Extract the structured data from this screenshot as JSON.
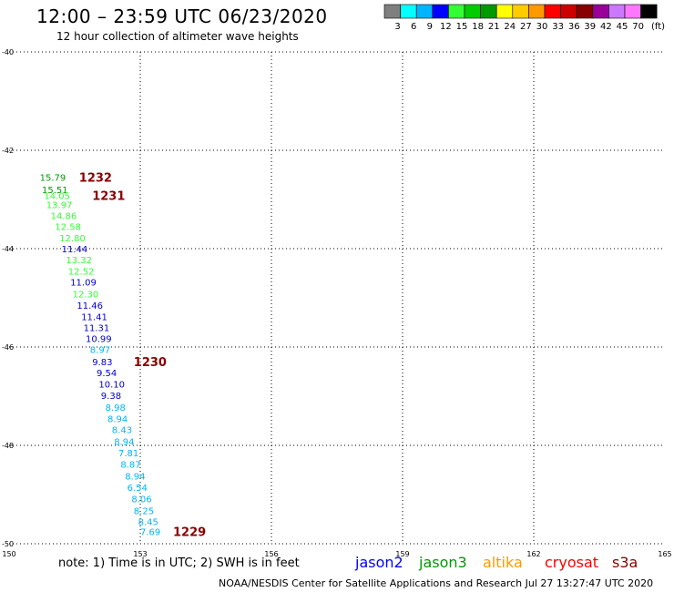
{
  "header": {
    "title": "12:00 – 23:59 UTC 06/23/2020",
    "subtitle": "12 hour collection of altimeter wave heights"
  },
  "legend": {
    "bins": [
      {
        "label": "3",
        "color": "#7f7f7f"
      },
      {
        "label": "6",
        "color": "#00ffff"
      },
      {
        "label": "9",
        "color": "#00b4ff"
      },
      {
        "label": "12",
        "color": "#0000ff"
      },
      {
        "label": "15",
        "color": "#33ff33"
      },
      {
        "label": "18",
        "color": "#00cc00"
      },
      {
        "label": "21",
        "color": "#009900"
      },
      {
        "label": "24",
        "color": "#ffff00"
      },
      {
        "label": "27",
        "color": "#ffcc00"
      },
      {
        "label": "30",
        "color": "#ff9900"
      },
      {
        "label": "33",
        "color": "#ff0000"
      },
      {
        "label": "36",
        "color": "#cc0000"
      },
      {
        "label": "39",
        "color": "#880000"
      },
      {
        "label": "42",
        "color": "#990099"
      },
      {
        "label": "45",
        "color": "#cc77ff"
      },
      {
        "label": "70",
        "color": "#ff77ff"
      },
      {
        "label": "",
        "color": "#000000"
      }
    ],
    "unit": "(ft)"
  },
  "chart_data": {
    "type": "scatter",
    "xlim": [
      150,
      165
    ],
    "ylim": [
      -50,
      -40
    ],
    "x_ticks": [
      "150",
      "153",
      "156",
      "159",
      "162",
      "165"
    ],
    "y_ticks": [
      "-40",
      "-42",
      "-44",
      "-46",
      "-48",
      "-50"
    ],
    "grid": true,
    "points": [
      {
        "lon": 150.7,
        "lat": -42.55,
        "swh": "15.79",
        "color": "#009900"
      },
      {
        "lon": 150.75,
        "lat": -42.8,
        "swh": "15.51",
        "color": "#009900"
      },
      {
        "lon": 150.8,
        "lat": -42.92,
        "swh": "14.05",
        "color": "#33ff33"
      },
      {
        "lon": 150.85,
        "lat": -43.1,
        "swh": "13.97",
        "color": "#33ff33"
      },
      {
        "lon": 150.95,
        "lat": -43.32,
        "swh": "14.86",
        "color": "#33ff33"
      },
      {
        "lon": 151.05,
        "lat": -43.55,
        "swh": "12.58",
        "color": "#33ff33"
      },
      {
        "lon": 151.15,
        "lat": -43.78,
        "swh": "12.80",
        "color": "#33ff33"
      },
      {
        "lon": 151.2,
        "lat": -44.0,
        "swh": "11.44",
        "color": "#0000cc"
      },
      {
        "lon": 151.3,
        "lat": -44.22,
        "swh": "13.32",
        "color": "#33ff33"
      },
      {
        "lon": 151.35,
        "lat": -44.45,
        "swh": "12.52",
        "color": "#33ff33"
      },
      {
        "lon": 151.4,
        "lat": -44.68,
        "swh": "11.09",
        "color": "#0000cc"
      },
      {
        "lon": 151.45,
        "lat": -44.92,
        "swh": "12.30",
        "color": "#33ff33"
      },
      {
        "lon": 151.55,
        "lat": -45.15,
        "swh": "11.46",
        "color": "#0000cc"
      },
      {
        "lon": 151.65,
        "lat": -45.38,
        "swh": "11.41",
        "color": "#0000cc"
      },
      {
        "lon": 151.7,
        "lat": -45.6,
        "swh": "11.31",
        "color": "#0000cc"
      },
      {
        "lon": 151.75,
        "lat": -45.82,
        "swh": "10.99",
        "color": "#0000cc"
      },
      {
        "lon": 151.85,
        "lat": -46.05,
        "swh": "8.97",
        "color": "#00b4ff"
      },
      {
        "lon": 151.9,
        "lat": -46.3,
        "swh": "9.83",
        "color": "#0000cc"
      },
      {
        "lon": 152.0,
        "lat": -46.52,
        "swh": "9.54",
        "color": "#0000cc"
      },
      {
        "lon": 152.05,
        "lat": -46.75,
        "swh": "10.10",
        "color": "#0000cc"
      },
      {
        "lon": 152.1,
        "lat": -46.98,
        "swh": "9.38",
        "color": "#0000cc"
      },
      {
        "lon": 152.2,
        "lat": -47.22,
        "swh": "8.98",
        "color": "#00b4ff"
      },
      {
        "lon": 152.25,
        "lat": -47.45,
        "swh": "8.94",
        "color": "#00b4ff"
      },
      {
        "lon": 152.35,
        "lat": -47.68,
        "swh": "8.43",
        "color": "#00b4ff"
      },
      {
        "lon": 152.4,
        "lat": -47.92,
        "swh": "8.94",
        "color": "#00b4ff"
      },
      {
        "lon": 152.5,
        "lat": -48.15,
        "swh": "7.81",
        "color": "#00b4ff"
      },
      {
        "lon": 152.55,
        "lat": -48.38,
        "swh": "8.87",
        "color": "#00b4ff"
      },
      {
        "lon": 152.65,
        "lat": -48.62,
        "swh": "8.94",
        "color": "#00b4ff"
      },
      {
        "lon": 152.7,
        "lat": -48.85,
        "swh": "6.54",
        "color": "#00b4ff"
      },
      {
        "lon": 152.8,
        "lat": -49.08,
        "swh": "8.06",
        "color": "#00b4ff"
      },
      {
        "lon": 152.85,
        "lat": -49.32,
        "swh": "8.25",
        "color": "#00b4ff"
      },
      {
        "lon": 152.95,
        "lat": -49.55,
        "swh": "8.45",
        "color": "#00b4ff"
      },
      {
        "lon": 153.0,
        "lat": -49.75,
        "swh": "7.69",
        "color": "#00b4ff"
      }
    ],
    "time_labels": [
      {
        "lon": 151.6,
        "lat": -42.55,
        "text": "1232"
      },
      {
        "lon": 151.9,
        "lat": -42.92,
        "text": "1231"
      },
      {
        "lon": 152.85,
        "lat": -46.3,
        "text": "1230"
      },
      {
        "lon": 153.75,
        "lat": -49.75,
        "text": "1229"
      }
    ],
    "time_label_color": "#880000"
  },
  "footer": {
    "note": "note:  1) Time is in UTC; 2) SWH is in feet",
    "satellites": [
      {
        "name": "jason2",
        "color": "#0000ff"
      },
      {
        "name": "jason3",
        "color": "#009900"
      },
      {
        "name": "altika",
        "color": "#ff9900"
      },
      {
        "name": "cryosat",
        "color": "#ff0000"
      },
      {
        "name": "s3a",
        "color": "#880000"
      }
    ],
    "credit": "NOAA/NESDIS Center for Satellite Applications and Research     Jul 27 13:27:47 UTC 2020"
  }
}
